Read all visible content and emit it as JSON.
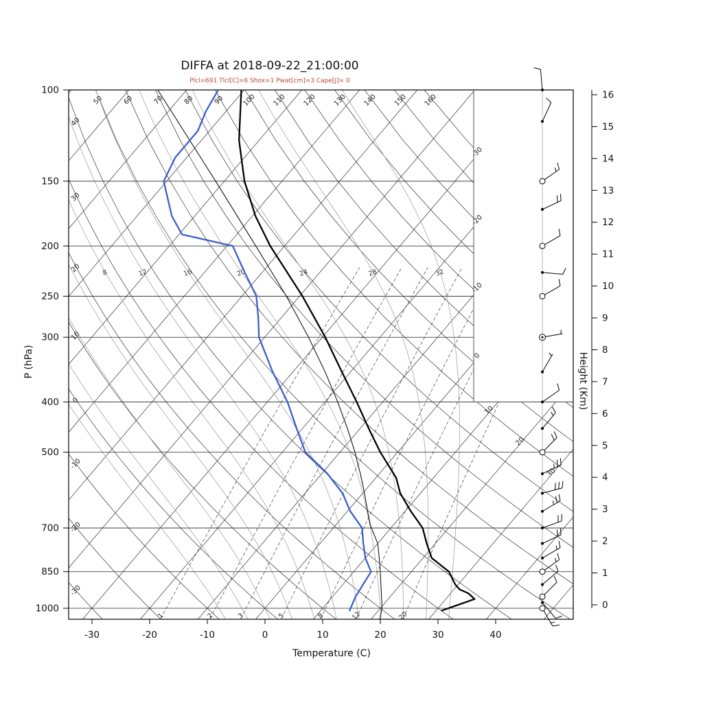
{
  "title": "DIFFA at 2018-09-22_21:00:00",
  "params_line": "Plcl=691 Tlcl[C]=6 Shox=1 Pwat[cm]=3 Cape[J]= 0",
  "colors": {
    "temperature": "#000000",
    "dewpoint": "#3a5fc8",
    "parcel": "#111111",
    "isotherm": "#2f2f2f",
    "dry_adiabat": "#2f2f2f",
    "moist_adiabat": "#a3a3a3",
    "mixing_ratio": "#3c3c3c",
    "isobar": "#222222",
    "frame": "#000000",
    "params_text": "#bf4330",
    "barb": "#000000"
  },
  "axes": {
    "pressure_label": "P (hPa)",
    "pressure_ticks": [
      100,
      150,
      200,
      250,
      300,
      400,
      500,
      700,
      850,
      1000
    ],
    "temp_label": "Temperature (C)",
    "temp_ticks": [
      -30,
      -20,
      -10,
      0,
      10,
      20,
      30,
      40
    ],
    "height_label": "Height (Km)",
    "height_ticks": [
      0,
      1,
      2,
      3,
      4,
      5,
      6,
      7,
      8,
      9,
      10,
      11,
      12,
      13,
      14,
      15,
      16
    ]
  },
  "chart_data": {
    "type": "line",
    "variant": "skew-t-log-p",
    "station": "DIFFA",
    "datetime": "2018-09-22_21:00:00",
    "parameters": {
      "Plcl": 691,
      "Tlcl_C": 6,
      "Shox": 1,
      "Pwat_cm": 3,
      "Cape_J": 0
    },
    "pressure_range_hPa": [
      100,
      1050
    ],
    "temperature_profile": [
      [
        1010,
        31
      ],
      [
        985,
        33
      ],
      [
        960,
        35
      ],
      [
        935,
        33
      ],
      [
        920,
        31
      ],
      [
        900,
        29.5
      ],
      [
        850,
        26.5
      ],
      [
        800,
        21.5
      ],
      [
        750,
        18.5
      ],
      [
        700,
        15.5
      ],
      [
        650,
        11
      ],
      [
        600,
        6.5
      ],
      [
        560,
        3.5
      ],
      [
        500,
        -3
      ],
      [
        450,
        -8.5
      ],
      [
        400,
        -14.5
      ],
      [
        350,
        -21.5
      ],
      [
        300,
        -29.5
      ],
      [
        250,
        -39.5
      ],
      [
        200,
        -52.5
      ],
      [
        175,
        -59.5
      ],
      [
        150,
        -66.5
      ],
      [
        125,
        -73.5
      ],
      [
        100,
        -80.5
      ]
    ],
    "dewpoint_profile": [
      [
        1010,
        15
      ],
      [
        950,
        14
      ],
      [
        900,
        13.5
      ],
      [
        850,
        13
      ],
      [
        800,
        10
      ],
      [
        750,
        7.5
      ],
      [
        700,
        5
      ],
      [
        650,
        0.5
      ],
      [
        600,
        -3.5
      ],
      [
        550,
        -9
      ],
      [
        500,
        -16
      ],
      [
        450,
        -21
      ],
      [
        400,
        -26.5
      ],
      [
        350,
        -33.5
      ],
      [
        300,
        -41
      ],
      [
        275,
        -44
      ],
      [
        250,
        -47.5
      ],
      [
        225,
        -53
      ],
      [
        200,
        -59
      ],
      [
        190,
        -69.5
      ],
      [
        175,
        -74
      ],
      [
        150,
        -80.5
      ],
      [
        135,
        -82
      ],
      [
        120,
        -82
      ],
      [
        110,
        -83.5
      ],
      [
        100,
        -84.5
      ]
    ],
    "parcel_profile": [
      [
        1050,
        21.5
      ],
      [
        1000,
        20.3
      ],
      [
        950,
        18.5
      ],
      [
        900,
        16.6
      ],
      [
        850,
        14.6
      ],
      [
        800,
        12.4
      ],
      [
        750,
        10
      ],
      [
        691,
        6
      ],
      [
        650,
        3.5
      ],
      [
        600,
        0.3
      ],
      [
        550,
        -3.3
      ],
      [
        500,
        -7.4
      ],
      [
        450,
        -12.2
      ],
      [
        400,
        -17.8
      ],
      [
        350,
        -24.4
      ],
      [
        300,
        -32.4
      ],
      [
        250,
        -42.3
      ],
      [
        200,
        -55
      ],
      [
        150,
        -71.5
      ],
      [
        100,
        -95
      ]
    ],
    "isotherms": {
      "min_C": -110,
      "max_C": 50,
      "step_C": 10,
      "right_edge_labels": [
        -30,
        -20,
        -10,
        0,
        10,
        20,
        30
      ]
    },
    "dry_adiabats": {
      "min_C": -30,
      "max_C": 160,
      "step_C": 10,
      "top_labels": [
        50,
        60,
        70,
        80,
        90,
        100,
        110,
        120,
        130,
        140,
        150,
        160
      ],
      "left_labels": [
        40,
        30,
        20,
        10,
        0,
        -10,
        -20,
        -30
      ]
    },
    "moist_adiabats": {
      "values": [
        -8,
        -4,
        0,
        4,
        8,
        12,
        16,
        20,
        24,
        28,
        32
      ],
      "labels": [
        8,
        12,
        16,
        20,
        24,
        28,
        32
      ],
      "label_pressure_hPa": 225
    },
    "mixing_ratio_g_kg": [
      1,
      2,
      3,
      5,
      8,
      12,
      20
    ],
    "wind_barbs": [
      [
        100,
        355,
        10,
        "dot"
      ],
      [
        115,
        25,
        10,
        "dot"
      ],
      [
        150,
        55,
        15,
        "circle"
      ],
      [
        170,
        65,
        20,
        "dot"
      ],
      [
        200,
        60,
        10,
        "circle"
      ],
      [
        225,
        95,
        10,
        "dot"
      ],
      [
        250,
        60,
        10,
        "circle"
      ],
      [
        300,
        80,
        5,
        "circledot"
      ],
      [
        350,
        30,
        5,
        "dot"
      ],
      [
        400,
        55,
        10,
        "dot"
      ],
      [
        450,
        40,
        15,
        "dot"
      ],
      [
        500,
        45,
        20,
        "circle"
      ],
      [
        550,
        65,
        25,
        "dot"
      ],
      [
        600,
        75,
        30,
        "dot"
      ],
      [
        650,
        60,
        25,
        "dot"
      ],
      [
        700,
        70,
        20,
        "dot"
      ],
      [
        750,
        65,
        20,
        "dot"
      ],
      [
        800,
        60,
        15,
        "dot"
      ],
      [
        850,
        55,
        15,
        "circle"
      ],
      [
        900,
        50,
        10,
        "dot"
      ],
      [
        950,
        45,
        10,
        "circle"
      ],
      [
        975,
        140,
        10,
        "dot"
      ],
      [
        1000,
        150,
        15,
        "circle"
      ]
    ]
  }
}
